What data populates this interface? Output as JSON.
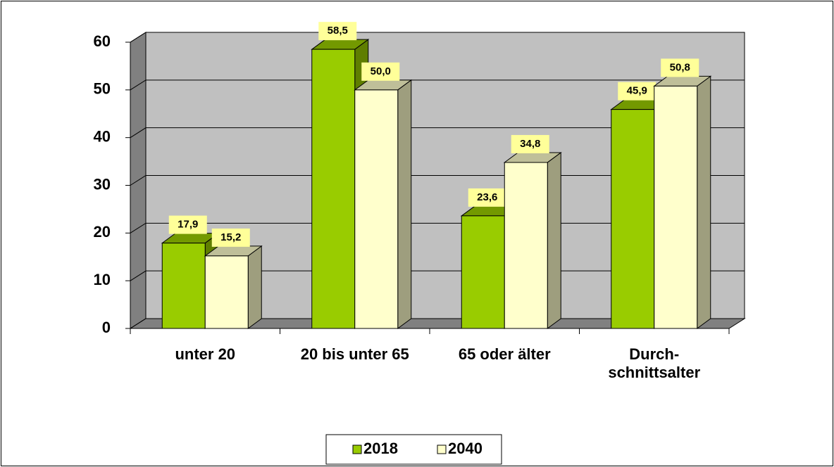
{
  "chart_data": {
    "type": "bar3d",
    "categories": [
      "unter 20",
      "20 bis unter 65",
      "65 oder älter",
      "Durch-schnittsalter"
    ],
    "series": [
      {
        "name": "2018",
        "color": "#99cc00",
        "values": [
          17.9,
          58.5,
          23.6,
          45.9
        ],
        "value_labels": [
          "17,9",
          "58,5",
          "23,6",
          "45,9"
        ]
      },
      {
        "name": "2040",
        "color": "#ffffcc",
        "values": [
          15.2,
          50.0,
          34.8,
          50.8
        ],
        "value_labels": [
          "15,2",
          "50,0",
          "34,8",
          "50,8"
        ]
      }
    ],
    "ylim": [
      0,
      60
    ],
    "yticks": [
      0,
      10,
      20,
      30,
      40,
      50,
      60
    ],
    "grid": true,
    "legend": "bottom"
  }
}
